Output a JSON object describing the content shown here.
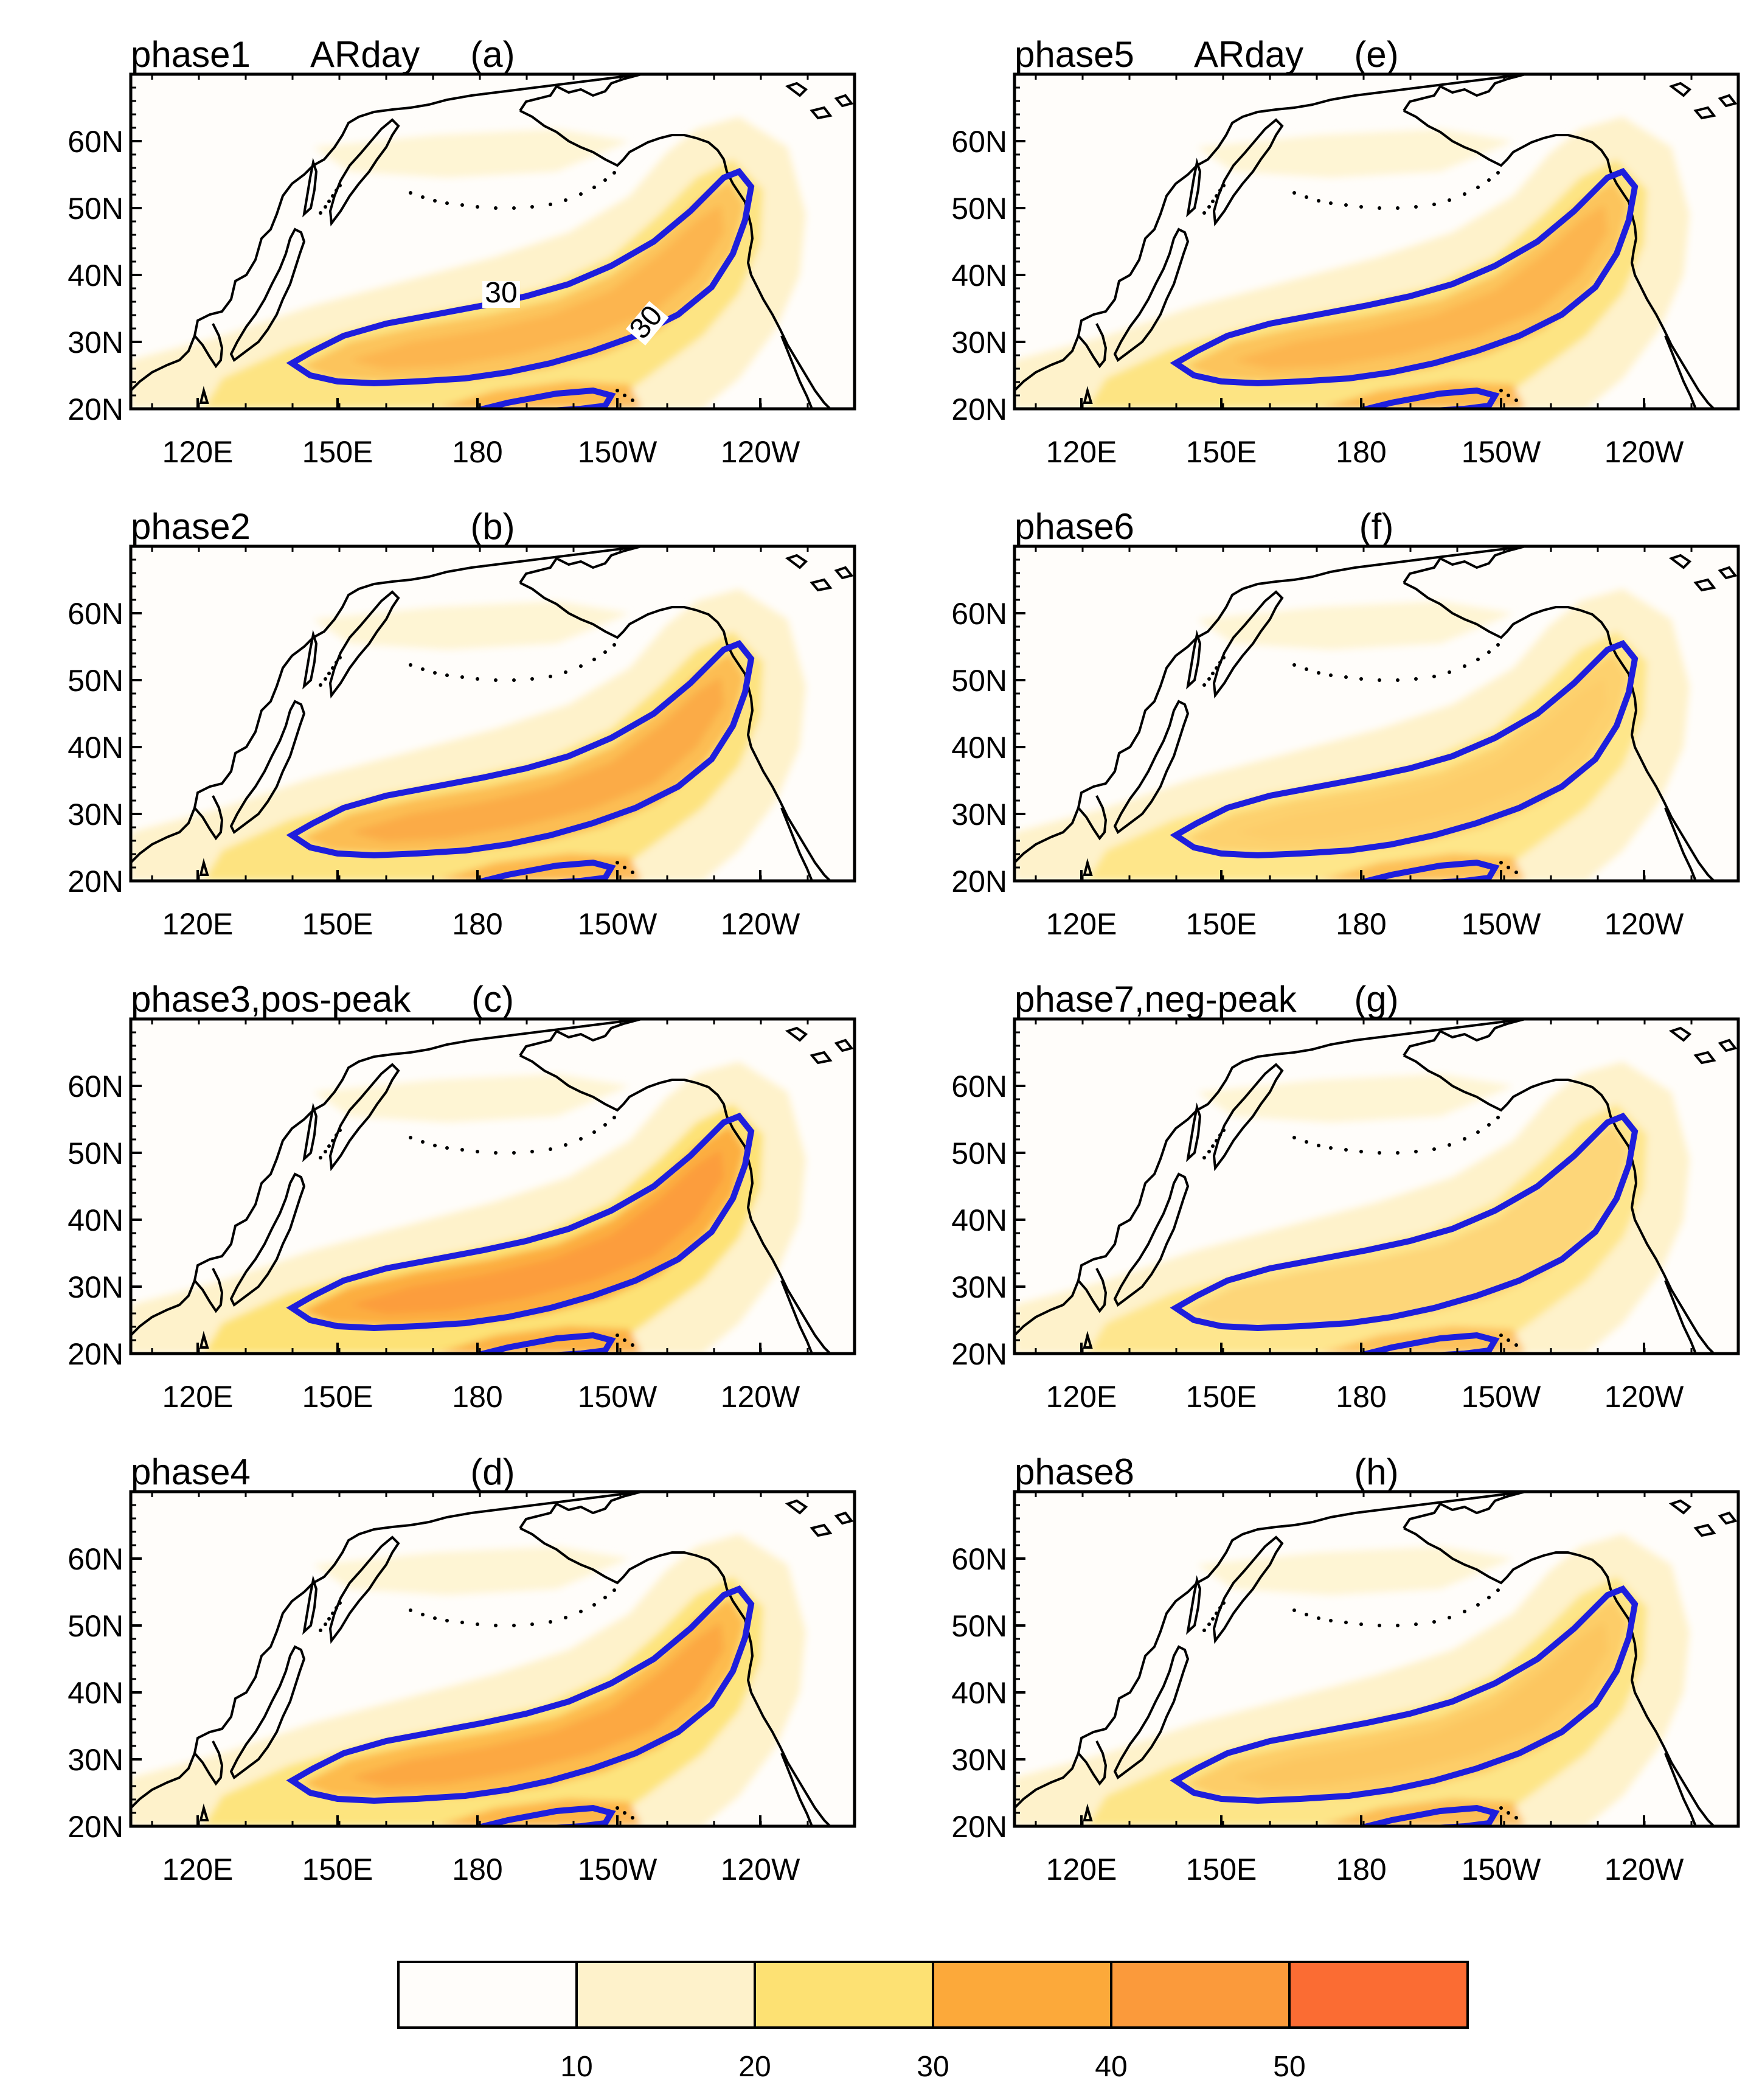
{
  "panels": [
    {
      "id": "a",
      "phase": "phase1",
      "subtitle": "ARday",
      "letter": "(a)"
    },
    {
      "id": "b",
      "phase": "phase2",
      "subtitle": "",
      "letter": "(b)"
    },
    {
      "id": "c",
      "phase": "phase3,pos-peak",
      "subtitle": "",
      "letter": "(c)"
    },
    {
      "id": "d",
      "phase": "phase4",
      "subtitle": "",
      "letter": "(d)"
    },
    {
      "id": "e",
      "phase": "phase5",
      "subtitle": "ARday",
      "letter": "(e)"
    },
    {
      "id": "f",
      "phase": "phase6",
      "subtitle": "",
      "letter": "(f)"
    },
    {
      "id": "g",
      "phase": "phase7,neg-peak",
      "subtitle": "",
      "letter": "(g)"
    },
    {
      "id": "h",
      "phase": "phase8",
      "subtitle": "",
      "letter": "(h)"
    }
  ],
  "axes": {
    "lon_ticks": [
      "120E",
      "150E",
      "180",
      "150W",
      "120W"
    ],
    "lon_tick_values": [
      120,
      150,
      180,
      210,
      240
    ],
    "lat_ticks": [
      "20N",
      "30N",
      "40N",
      "50N",
      "60N"
    ],
    "lat_tick_values": [
      20,
      30,
      40,
      50,
      60
    ],
    "lon_range": [
      105,
      260
    ],
    "lat_range": [
      20,
      70
    ]
  },
  "contour_labels": [
    "30",
    "30"
  ],
  "colorbar": {
    "levels": [
      10,
      20,
      30,
      40,
      50
    ],
    "labels": [
      "10",
      "20",
      "30",
      "40",
      "50"
    ],
    "colors": [
      "#fffdfa",
      "#fef2cb",
      "#fde173",
      "#fca93a",
      "#fb9a3b",
      "#fb6c33"
    ]
  },
  "colors": {
    "climatology_contour": "#1e1edc",
    "coastline": "#000000"
  }
}
